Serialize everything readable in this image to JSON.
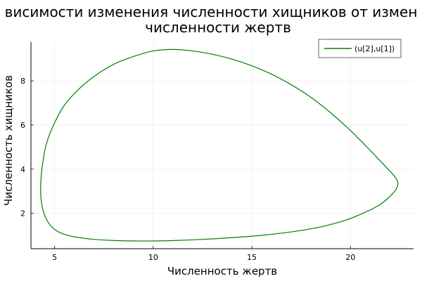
{
  "chart_data": {
    "type": "line",
    "title_line1": "висимости изменения численности хищников от измен",
    "title_line2": "численности жертв",
    "xlabel": "Численность жертв",
    "ylabel": "Численность хищников",
    "xlim": [
      3.8,
      23.2
    ],
    "ylim": [
      0.4,
      9.75
    ],
    "xticks": [
      5,
      10,
      15,
      20
    ],
    "yticks": [
      2,
      4,
      6,
      8
    ],
    "grid": true,
    "legend_position": "top-right",
    "series": [
      {
        "name": "(u[2],u[1])",
        "color": "#008000",
        "x": [
          11.0,
          12.0,
          13.0,
          14.0,
          15.0,
          16.0,
          17.0,
          18.0,
          19.0,
          20.0,
          21.0,
          21.8,
          22.3,
          22.4,
          22.2,
          21.5,
          20.5,
          19.5,
          18.0,
          16.0,
          14.0,
          12.0,
          10.0,
          8.0,
          6.5,
          5.5,
          4.9,
          4.5,
          4.32,
          4.3,
          4.4,
          4.6,
          5.0,
          5.5,
          6.2,
          7.0,
          8.0,
          9.0,
          10.0,
          11.0
        ],
        "y": [
          9.42,
          9.35,
          9.2,
          8.98,
          8.68,
          8.3,
          7.82,
          7.25,
          6.55,
          5.75,
          4.85,
          4.1,
          3.6,
          3.3,
          2.95,
          2.4,
          1.95,
          1.62,
          1.3,
          1.05,
          0.9,
          0.8,
          0.75,
          0.77,
          0.87,
          1.05,
          1.35,
          1.9,
          2.6,
          3.4,
          4.3,
          5.2,
          6.1,
          6.9,
          7.6,
          8.2,
          8.75,
          9.1,
          9.35,
          9.42
        ]
      }
    ]
  }
}
